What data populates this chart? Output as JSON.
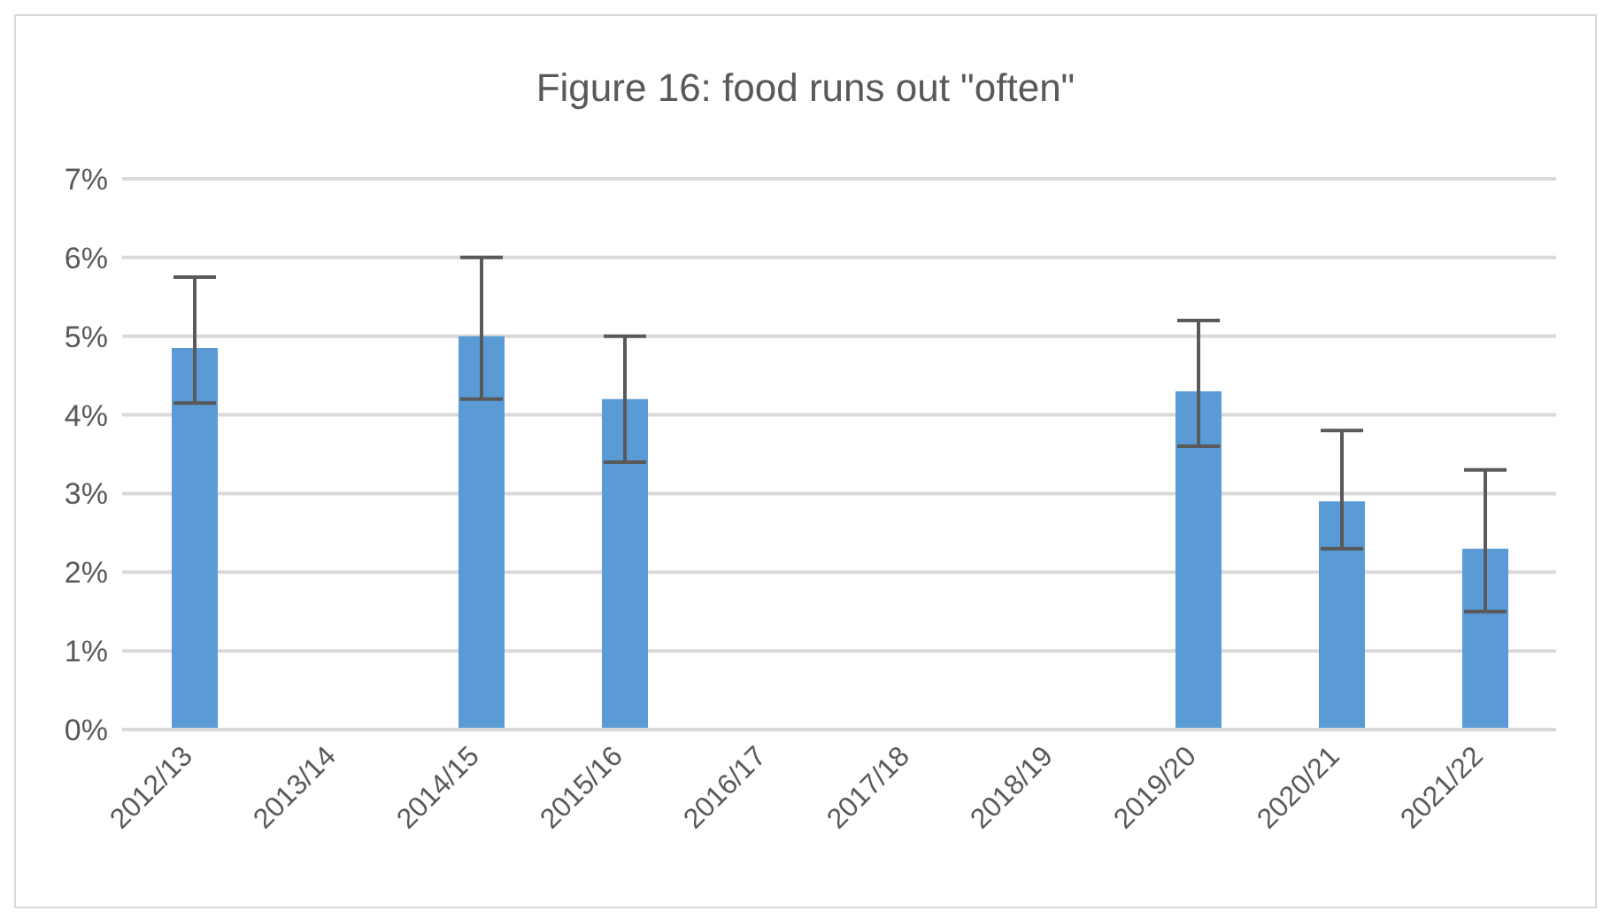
{
  "chart_data": {
    "type": "bar",
    "title": "Figure 16: food runs out \"often\"",
    "categories": [
      "2012/13",
      "2013/14",
      "2014/15",
      "2015/16",
      "2016/17",
      "2017/18",
      "2018/19",
      "2019/20",
      "2020/21",
      "2021/22"
    ],
    "values": [
      4.85,
      null,
      5.0,
      4.2,
      null,
      null,
      null,
      4.3,
      2.9,
      2.3
    ],
    "errors": [
      [
        4.15,
        5.75
      ],
      null,
      [
        4.2,
        6.0
      ],
      [
        3.4,
        5.0
      ],
      null,
      null,
      null,
      [
        3.6,
        5.2
      ],
      [
        2.3,
        3.8
      ],
      [
        1.5,
        3.3
      ]
    ],
    "color": "#5b9bd5",
    "ylim": [
      0,
      7
    ],
    "yticks": [
      {
        "value": 0,
        "label": "0%"
      },
      {
        "value": 1,
        "label": "1%"
      },
      {
        "value": 2,
        "label": "2%"
      },
      {
        "value": 3,
        "label": "3%"
      },
      {
        "value": 4,
        "label": "4%"
      },
      {
        "value": 5,
        "label": "5%"
      },
      {
        "value": 6,
        "label": "6%"
      },
      {
        "value": 7,
        "label": "7%"
      }
    ],
    "grid": "y"
  }
}
